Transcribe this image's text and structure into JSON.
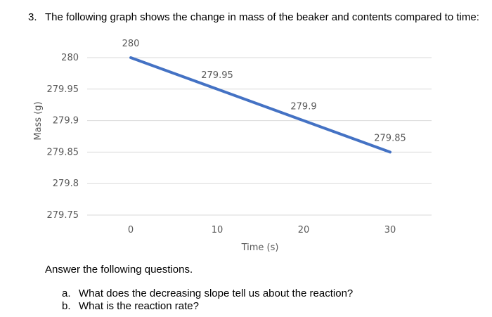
{
  "question": {
    "number": "3.",
    "text": "The following graph shows the change in mass of the beaker and contents compared to time:"
  },
  "chart_data": {
    "type": "line",
    "x": [
      0,
      10,
      20,
      30
    ],
    "y": [
      280,
      279.95,
      279.9,
      279.85
    ],
    "data_labels": [
      "280",
      "279.95",
      "279.9",
      "279.85"
    ],
    "x_ticks": [
      "0",
      "10",
      "20",
      "30"
    ],
    "y_ticks": [
      "280",
      "279.95",
      "279.9",
      "279.85",
      "279.8",
      "279.75"
    ],
    "xlabel": "Time (s)",
    "ylabel": "Mass (g)",
    "ylim": [
      279.75,
      280
    ],
    "grid": true,
    "line_color": "#4472c4",
    "grid_color": "#d9d9d9",
    "label_color": "#595959"
  },
  "instructions": "Answer the following questions.",
  "subquestions": [
    {
      "label": "a.",
      "text": "What does the decreasing slope tell us about the reaction?"
    },
    {
      "label": "b.",
      "text": "What is the reaction rate?"
    }
  ]
}
